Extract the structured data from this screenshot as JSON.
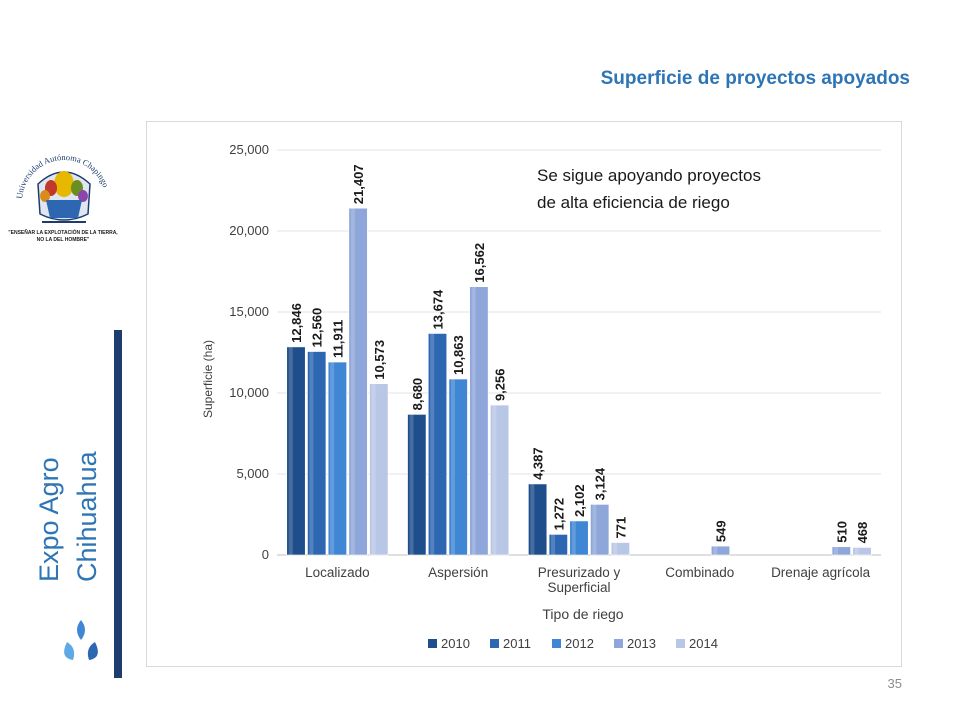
{
  "slide": {
    "title": "Superficie de proyectos apoyados",
    "side_title_line1": "Expo Agro",
    "side_title_line2": "Chihuahua",
    "page_number": "35",
    "logo_text": "Universidad Autónoma Chapingo",
    "logo_motto_line1": "\"ENSEÑAR LA EXPLOTACIÓN DE LA TIERRA,",
    "logo_motto_line2": "NO LA DEL HOMBRE\""
  },
  "annotation": {
    "line1": "Se sigue apoyando proyectos",
    "line2": "de alta eficiencia de riego"
  },
  "colors": {
    "title": "#2e75b6",
    "side_text": "#2e75b6",
    "side_bar": "#1f3c6e"
  },
  "chart_data": {
    "type": "bar",
    "xlabel": "Tipo de riego",
    "ylabel": "Superficie (ha)",
    "ylim": [
      0,
      25000
    ],
    "yticks": [
      0,
      5000,
      10000,
      15000,
      20000,
      25000
    ],
    "ytick_labels": [
      "0",
      "5,000",
      "10,000",
      "15,000",
      "20,000",
      "25,000"
    ],
    "grid": true,
    "legend_position": "bottom",
    "categories": [
      [
        "Localizado"
      ],
      [
        "Aspersión"
      ],
      [
        "Presurizado y",
        "Superficial"
      ],
      [
        "Combinado"
      ],
      [
        "Drenaje agrícola"
      ]
    ],
    "series": [
      {
        "name": "2010",
        "color": "#1f4e8c",
        "values": [
          12846,
          8680,
          4387,
          null,
          null
        ],
        "labels": [
          "12,846",
          "8,680",
          "4,387",
          "",
          ""
        ]
      },
      {
        "name": "2011",
        "color": "#2e67b1",
        "values": [
          12560,
          13674,
          1272,
          null,
          null
        ],
        "labels": [
          "12,560",
          "13,674",
          "1,272",
          "",
          ""
        ]
      },
      {
        "name": "2012",
        "color": "#3f86d4",
        "values": [
          11911,
          10863,
          2102,
          null,
          null
        ],
        "labels": [
          "11,911",
          "10,863",
          "2,102",
          "",
          ""
        ]
      },
      {
        "name": "2013",
        "color": "#8ea6d9",
        "values": [
          21407,
          16562,
          3124,
          549,
          510
        ],
        "labels": [
          "21,407",
          "16,562",
          "3,124",
          "549",
          "510"
        ]
      },
      {
        "name": "2014",
        "color": "#b9c7e6",
        "values": [
          10573,
          9256,
          771,
          null,
          468
        ],
        "labels": [
          "10,573",
          "9,256",
          "771",
          "",
          "468"
        ]
      }
    ]
  }
}
